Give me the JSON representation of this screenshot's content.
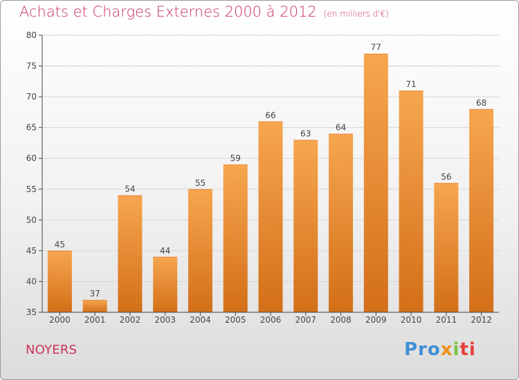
{
  "header": {
    "title": "Achats et Charges Externes 2000 à 2012",
    "unit": "(en milliers d'€)"
  },
  "footer": {
    "commune": "NOYERS",
    "logo": [
      "Pro",
      "x",
      "i",
      "ti"
    ]
  },
  "colors": {
    "title": "#c8335c",
    "bar_light": "#f7a650",
    "bar_dark": "#d36f18",
    "axis": "#444444",
    "grid": "#d6d6d6"
  },
  "chart_data": {
    "type": "bar",
    "categories": [
      "2000",
      "2001",
      "2002",
      "2003",
      "2004",
      "2005",
      "2006",
      "2007",
      "2008",
      "2009",
      "2010",
      "2011",
      "2012"
    ],
    "values": [
      45,
      37,
      54,
      44,
      55,
      59,
      66,
      63,
      64,
      77,
      71,
      56,
      68
    ],
    "ylim": [
      35,
      80
    ],
    "yticks": [
      35,
      40,
      45,
      50,
      55,
      60,
      65,
      70,
      75,
      80
    ],
    "grid": true,
    "data_labels": true,
    "legend": "none"
  }
}
